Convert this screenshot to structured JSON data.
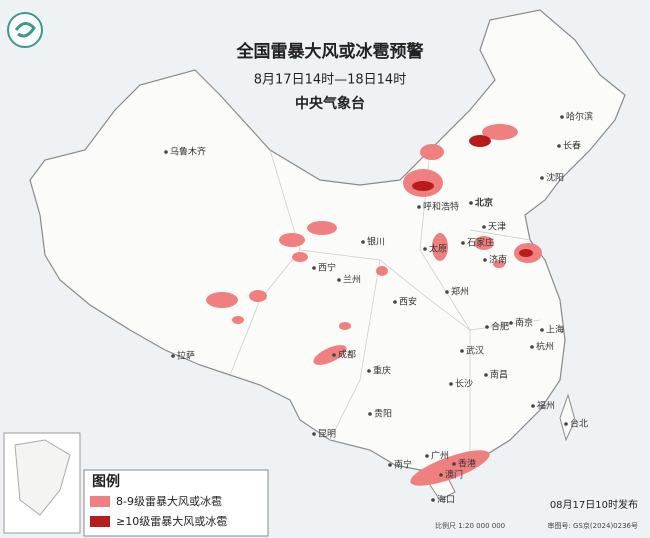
{
  "header": {
    "title": "全国雷暴大风或冰雹预警",
    "period": "8月17日14时—18日14时",
    "agency": "中央气象台"
  },
  "cities": [
    "乌鲁木齐",
    "哈尔滨",
    "长春",
    "沈阳",
    "呼和浩特",
    "北京",
    "天津",
    "银川",
    "石家庄",
    "太原",
    "济南",
    "西宁",
    "兰州",
    "郑州",
    "西安",
    "合肥",
    "南京",
    "上海",
    "拉萨",
    "成都",
    "武汉",
    "杭州",
    "重庆",
    "长沙",
    "南昌",
    "福州",
    "台北",
    "贵阳",
    "昆明",
    "南宁",
    "广州",
    "香港",
    "澳门",
    "海口"
  ],
  "legend": {
    "title": "图例",
    "items": [
      "8-9级雷暴大风或冰雹",
      "≥10级雷暴大风或冰雹"
    ]
  },
  "footer": {
    "issued": "08月17日10时发布",
    "scale": "比例尺 1:20 000 000",
    "map_number": "审图号: GS京(2024)0236号"
  }
}
